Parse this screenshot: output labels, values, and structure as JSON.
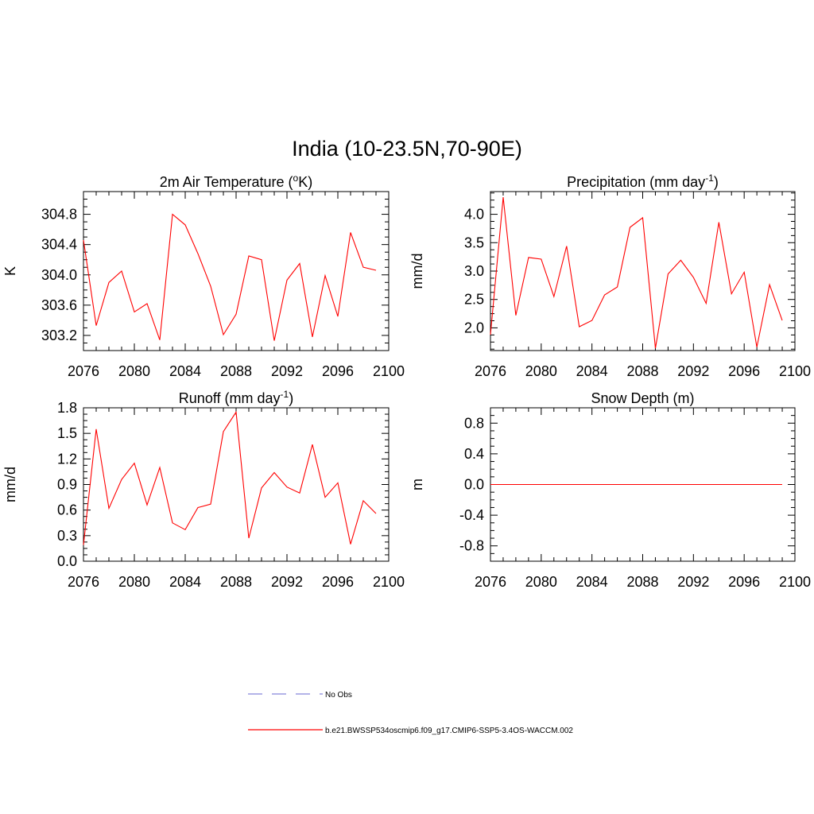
{
  "title": "India (10-23.5N,70-90E)",
  "colors": {
    "series": "#ff0000",
    "obs": "#9a9ae0",
    "axis": "#000000"
  },
  "legend": {
    "obs_label": "No Obs",
    "model_label": "b.e21.BWSSP534oscmip6.f09_g17.CMIP6-SSP5-3.4OS-WACCM.002"
  },
  "chart_data": [
    {
      "type": "line",
      "title": "2m Air Temperature (",
      "title_sup_pre": "o",
      "title_post": "K)",
      "title_sup": "",
      "title_tail": "",
      "xlabel": "",
      "ylabel": "K",
      "xlim": [
        2076,
        2100
      ],
      "ylim": [
        303.0,
        305.1
      ],
      "xticks": [
        2076,
        2080,
        2084,
        2088,
        2092,
        2096,
        2100
      ],
      "xticklabels": [
        "2076",
        "2080",
        "2084",
        "2088",
        "2092",
        "2096",
        "2100"
      ],
      "yticks": [
        303.2,
        303.6,
        304.0,
        304.4,
        304.8
      ],
      "yticklabels": [
        "303.2",
        "303.6",
        "304.0",
        "304.4",
        "304.8"
      ],
      "series": [
        {
          "name": "b.e21.BWSSP534oscmip6.f09_g17.CMIP6-SSP5-3.4OS-WACCM.002",
          "x": [
            2076,
            2077,
            2078,
            2079,
            2080,
            2081,
            2082,
            2083,
            2084,
            2085,
            2086,
            2087,
            2088,
            2089,
            2090,
            2091,
            2092,
            2093,
            2094,
            2095,
            2096,
            2097,
            2098,
            2099
          ],
          "values": [
            304.46,
            303.33,
            303.9,
            304.05,
            303.51,
            303.62,
            303.14,
            304.8,
            304.66,
            304.28,
            303.85,
            303.21,
            303.48,
            304.25,
            304.2,
            303.13,
            303.93,
            304.15,
            303.18,
            303.99,
            303.45,
            304.56,
            304.1,
            304.06
          ]
        }
      ]
    },
    {
      "type": "line",
      "title": "Precipitation (mm day",
      "title_sup_pre": "",
      "title_post": "",
      "title_sup": "-1",
      "title_tail": ")",
      "xlabel": "",
      "ylabel": "mm/d",
      "xlim": [
        2076,
        2100
      ],
      "ylim": [
        1.6,
        4.4
      ],
      "xticks": [
        2076,
        2080,
        2084,
        2088,
        2092,
        2096,
        2100
      ],
      "xticklabels": [
        "2076",
        "2080",
        "2084",
        "2088",
        "2092",
        "2096",
        "2100"
      ],
      "yticks": [
        2.0,
        2.5,
        3.0,
        3.5,
        4.0
      ],
      "yticklabels": [
        "2.0",
        "2.5",
        "3.0",
        "3.5",
        "4.0"
      ],
      "series": [
        {
          "name": "b.e21.BWSSP534oscmip6.f09_g17.CMIP6-SSP5-3.4OS-WACCM.002",
          "x": [
            2076,
            2077,
            2078,
            2079,
            2080,
            2081,
            2082,
            2083,
            2084,
            2085,
            2086,
            2087,
            2088,
            2089,
            2090,
            2091,
            2092,
            2093,
            2094,
            2095,
            2096,
            2097,
            2098,
            2099
          ],
          "values": [
            1.88,
            4.3,
            2.22,
            3.24,
            3.21,
            2.55,
            3.44,
            2.02,
            2.13,
            2.58,
            2.72,
            3.77,
            3.94,
            1.64,
            2.95,
            3.19,
            2.89,
            2.43,
            3.86,
            2.6,
            2.98,
            1.66,
            2.76,
            2.13
          ]
        }
      ]
    },
    {
      "type": "line",
      "title": "Runoff (mm day",
      "title_sup_pre": "",
      "title_post": "",
      "title_sup": "-1",
      "title_tail": ")",
      "xlabel": "",
      "ylabel": "mm/d",
      "xlim": [
        2076,
        2100
      ],
      "ylim": [
        0.0,
        1.8
      ],
      "xticks": [
        2076,
        2080,
        2084,
        2088,
        2092,
        2096,
        2100
      ],
      "xticklabels": [
        "2076",
        "2080",
        "2084",
        "2088",
        "2092",
        "2096",
        "2100"
      ],
      "yticks": [
        0.0,
        0.3,
        0.6,
        0.9,
        1.2,
        1.5,
        1.8
      ],
      "yticklabels": [
        "0.0",
        "0.3",
        "0.6",
        "0.9",
        "1.2",
        "1.5",
        "1.8"
      ],
      "series": [
        {
          "name": "b.e21.BWSSP534oscmip6.f09_g17.CMIP6-SSP5-3.4OS-WACCM.002",
          "x": [
            2076,
            2077,
            2078,
            2079,
            2080,
            2081,
            2082,
            2083,
            2084,
            2085,
            2086,
            2087,
            2088,
            2089,
            2090,
            2091,
            2092,
            2093,
            2094,
            2095,
            2096,
            2097,
            2098,
            2099
          ],
          "values": [
            0.19,
            1.55,
            0.62,
            0.96,
            1.15,
            0.66,
            1.1,
            0.45,
            0.37,
            0.63,
            0.67,
            1.52,
            1.75,
            0.27,
            0.86,
            1.04,
            0.87,
            0.8,
            1.37,
            0.75,
            0.92,
            0.2,
            0.71,
            0.56
          ]
        }
      ]
    },
    {
      "type": "line",
      "title": "Snow Depth (m)",
      "title_sup_pre": "",
      "title_post": "",
      "title_sup": "",
      "title_tail": "",
      "xlabel": "",
      "ylabel": "m",
      "xlim": [
        2076,
        2100
      ],
      "ylim": [
        -1.0,
        1.0
      ],
      "xticks": [
        2076,
        2080,
        2084,
        2088,
        2092,
        2096,
        2100
      ],
      "xticklabels": [
        "2076",
        "2080",
        "2084",
        "2088",
        "2092",
        "2096",
        "2100"
      ],
      "yticks": [
        -0.8,
        -0.4,
        0.0,
        0.4,
        0.8
      ],
      "yticklabels": [
        "-0.8",
        "-0.4",
        "0.0",
        "0.4",
        "0.8"
      ],
      "series": [
        {
          "name": "b.e21.BWSSP534oscmip6.f09_g17.CMIP6-SSP5-3.4OS-WACCM.002",
          "x": [
            2076,
            2077,
            2078,
            2079,
            2080,
            2081,
            2082,
            2083,
            2084,
            2085,
            2086,
            2087,
            2088,
            2089,
            2090,
            2091,
            2092,
            2093,
            2094,
            2095,
            2096,
            2097,
            2098,
            2099
          ],
          "values": [
            0,
            0,
            0,
            0,
            0,
            0,
            0,
            0,
            0,
            0,
            0,
            0,
            0,
            0,
            0,
            0,
            0,
            0,
            0,
            0,
            0,
            0,
            0,
            0
          ]
        }
      ]
    }
  ]
}
